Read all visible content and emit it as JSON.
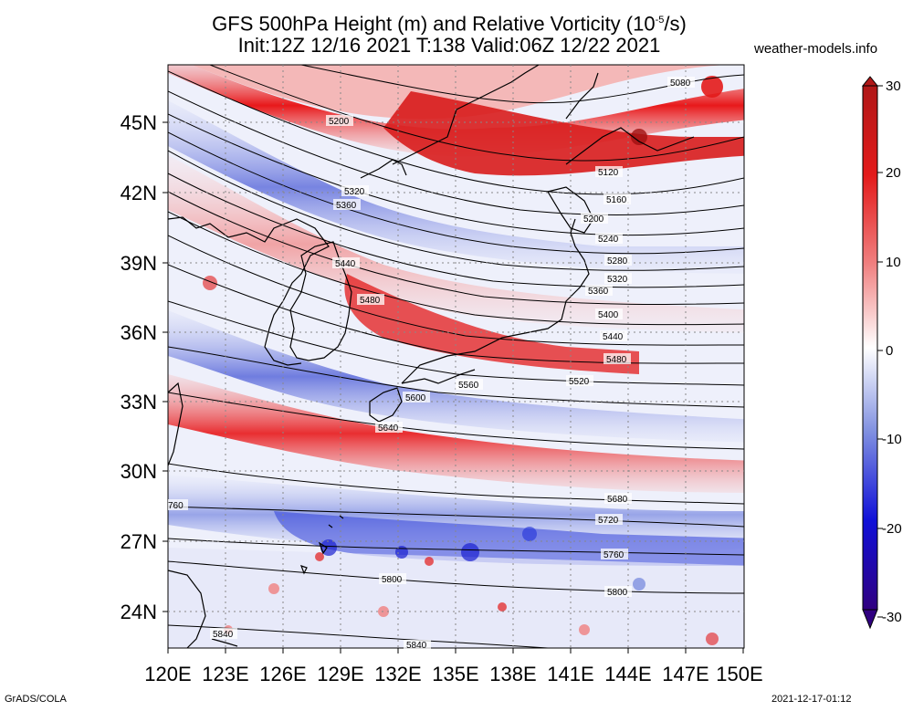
{
  "title": {
    "line1_text": "GFS 500hPa Height (m) and Relative Vorticity (10",
    "line1_exp": "-5",
    "line1_end": "/s)",
    "line2": "Init:12Z 12/16 2021 T:138 Valid:06Z 12/22 2021"
  },
  "brand": "weather-models.info",
  "footer": {
    "left": "GrADS/COLA",
    "right": "2021-12-17-01:12"
  },
  "axes": {
    "lat_labels": [
      "45N",
      "42N",
      "39N",
      "36N",
      "33N",
      "30N",
      "27N",
      "24N"
    ],
    "lon_labels": [
      "120E",
      "123E",
      "126E",
      "129E",
      "132E",
      "135E",
      "138E",
      "141E",
      "144E",
      "147E",
      "150E"
    ]
  },
  "colorbar": {
    "ticks": [
      "30",
      "20",
      "10",
      "0",
      "-10",
      "-20",
      "-30"
    ],
    "colors": [
      "#b01818",
      "#e31a1a",
      "#f08080",
      "#ffffff",
      "#8090e0",
      "#1010d8",
      "#300080"
    ]
  },
  "contour_labels": [
    "5080",
    "5120",
    "5160",
    "5200",
    "5200",
    "5240",
    "5280",
    "5320",
    "5320",
    "5360",
    "5360",
    "5400",
    "5440",
    "5440",
    "5480",
    "5480",
    "5520",
    "5560",
    "5600",
    "5640",
    "5680",
    "5720",
    "5760",
    "760",
    "5800",
    "5800",
    "5840",
    "5840"
  ]
}
